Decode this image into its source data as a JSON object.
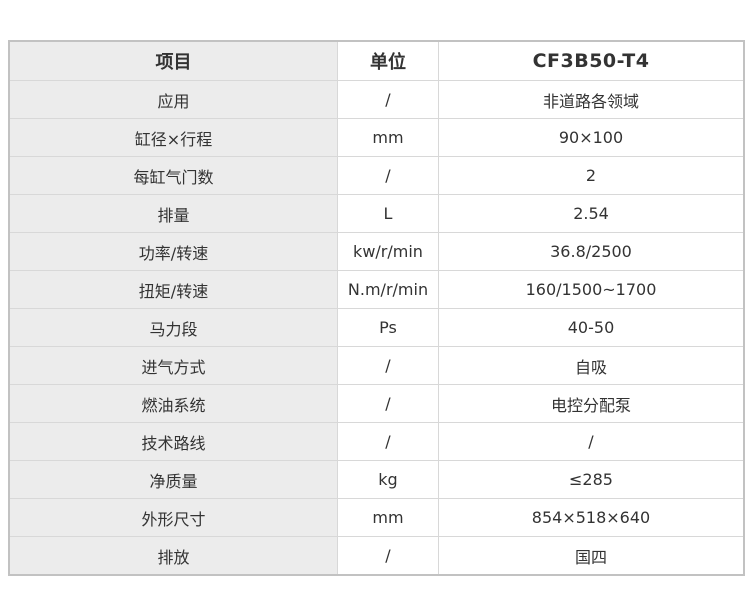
{
  "table": {
    "title": "CF3B50-T4 engine specification table",
    "columns": [
      {
        "label": "项目"
      },
      {
        "label": "单位"
      },
      {
        "label": "CF3B50-T4"
      }
    ],
    "rows": [
      {
        "item": "应用",
        "unit": "/",
        "value": "非道路各领域"
      },
      {
        "item": "缸径×行程",
        "unit": "mm",
        "value": "90×100"
      },
      {
        "item": "每缸气门数",
        "unit": "/",
        "value": "2"
      },
      {
        "item": "排量",
        "unit": "L",
        "value": "2.54"
      },
      {
        "item": "功率/转速",
        "unit": "kw/r/min",
        "value": "36.8/2500"
      },
      {
        "item": "扭矩/转速",
        "unit": "N.m/r/min",
        "value": "160/1500~1700"
      },
      {
        "item": "马力段",
        "unit": "Ps",
        "value": "40-50"
      },
      {
        "item": "进气方式",
        "unit": "/",
        "value": "自吸"
      },
      {
        "item": "燃油系统",
        "unit": "/",
        "value": "电控分配泵"
      },
      {
        "item": "技术路线",
        "unit": "/",
        "value": "/"
      },
      {
        "item": "净质量",
        "unit": "kg",
        "value": "≤285"
      },
      {
        "item": "外形尺寸",
        "unit": "mm",
        "value": "854×518×640"
      },
      {
        "item": "排放",
        "unit": "/",
        "value": "国四"
      }
    ],
    "colors": {
      "item_column_bg": "#ececec",
      "cell_bg": "#ffffff",
      "inner_border": "#d8d8d8",
      "outer_border": "#c2c2c2",
      "text": "#333333"
    }
  }
}
